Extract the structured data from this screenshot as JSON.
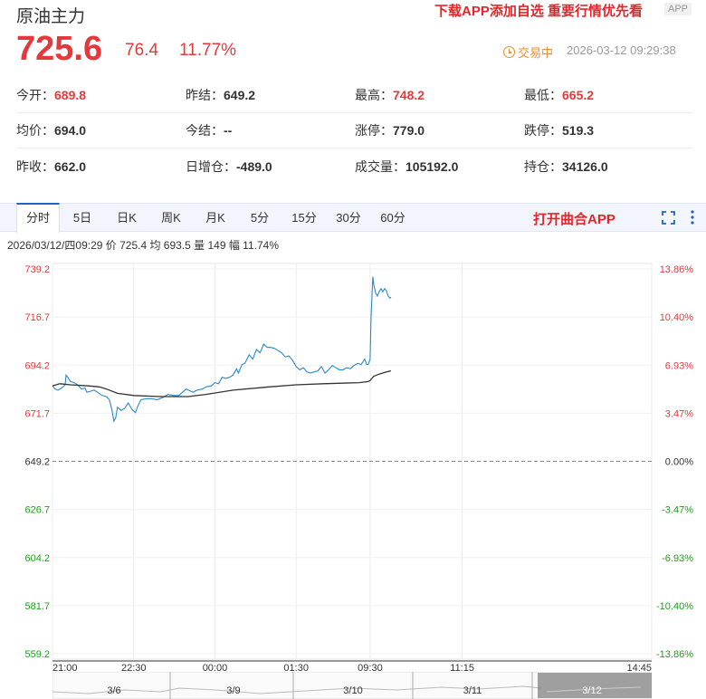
{
  "header": {
    "title": "原油主力",
    "promo": "下载APP添加自选 重要行情优先看",
    "app_badge": "APP",
    "price": "725.6",
    "change": "76.4",
    "change_pct": "11.77%",
    "status": "交易中",
    "timestamp": "2026-03-12 09:29:38"
  },
  "stats": [
    [
      {
        "label": "今开：",
        "value": "689.8",
        "color": "red"
      },
      {
        "label": "昨结：",
        "value": "649.2",
        "color": "black"
      },
      {
        "label": "最高：",
        "value": "748.2",
        "color": "red"
      },
      {
        "label": "最低：",
        "value": "665.2",
        "color": "red"
      }
    ],
    [
      {
        "label": "均价：",
        "value": "694.0",
        "color": "black"
      },
      {
        "label": "今结：",
        "value": "--",
        "color": "black"
      },
      {
        "label": "涨停：",
        "value": "779.0",
        "color": "black"
      },
      {
        "label": "跌停：",
        "value": "519.3",
        "color": "black"
      }
    ],
    [
      {
        "label": "昨收：",
        "value": "662.0",
        "color": "black"
      },
      {
        "label": "日增仓：",
        "value": "-489.0",
        "color": "black"
      },
      {
        "label": "成交量：",
        "value": "105192.0",
        "color": "black"
      },
      {
        "label": "持仓：",
        "value": "34126.0",
        "color": "black"
      }
    ]
  ],
  "tabs": [
    "分时",
    "5日",
    "日K",
    "周K",
    "月K",
    "5分",
    "15分",
    "30分",
    "60分"
  ],
  "active_tab": "分时",
  "open_app": "打开曲合APP",
  "info_line": "2026/03/12/四09:29  价 725.4  均 693.5  量 149  幅 11.74%",
  "colors": {
    "up": "#e4393c",
    "down": "#1aa01a",
    "price_line": "#2a88c8",
    "avg_line": "#333333",
    "accent": "#1e63c5"
  },
  "chart_data": {
    "type": "line",
    "ylim": [
      559.2,
      739.2
    ],
    "ref_price": 649.2,
    "y_ticks_left": [
      "739.2",
      "716.7",
      "694.2",
      "671.7",
      "649.2",
      "626.7",
      "604.2",
      "581.7",
      "559.2"
    ],
    "y_ticks_right": [
      "13.86%",
      "10.40%",
      "6.93%",
      "3.47%",
      "0.00%",
      "-3.47%",
      "-6.93%",
      "-10.40%",
      "-13.86%"
    ],
    "x_ticks": [
      "21:00",
      "22:30",
      "00:00",
      "01:30",
      "09:30",
      "11:15",
      "14:45"
    ],
    "x_tick_index": [
      0,
      90,
      180,
      270,
      352,
      454,
      664
    ],
    "x_total": 664,
    "series": [
      {
        "name": "价",
        "kind": "price",
        "points": [
          [
            0,
            684.5
          ],
          [
            3,
            683
          ],
          [
            6,
            682.5
          ],
          [
            10,
            683.5
          ],
          [
            14,
            685
          ],
          [
            15,
            689.5
          ],
          [
            17,
            688.5
          ],
          [
            20,
            686.5
          ],
          [
            24,
            686
          ],
          [
            28,
            685
          ],
          [
            32,
            683
          ],
          [
            36,
            683.5
          ],
          [
            38,
            681.5
          ],
          [
            42,
            682
          ],
          [
            46,
            682.5
          ],
          [
            50,
            681.5
          ],
          [
            55,
            680
          ],
          [
            60,
            679.5
          ],
          [
            63,
            678
          ],
          [
            66,
            673
          ],
          [
            68,
            668
          ],
          [
            70,
            669.5
          ],
          [
            72,
            674.5
          ],
          [
            76,
            673
          ],
          [
            80,
            674
          ],
          [
            84,
            676.5
          ],
          [
            88,
            673.5
          ],
          [
            92,
            672
          ],
          [
            94,
            674.5
          ],
          [
            98,
            678
          ],
          [
            104,
            678.5
          ],
          [
            110,
            678.5
          ],
          [
            116,
            678
          ],
          [
            122,
            679
          ],
          [
            128,
            680.5
          ],
          [
            134,
            680
          ],
          [
            140,
            680
          ],
          [
            148,
            683
          ],
          [
            156,
            681.5
          ],
          [
            160,
            682.5
          ],
          [
            166,
            683
          ],
          [
            170,
            684
          ],
          [
            176,
            684.5
          ],
          [
            180,
            686
          ],
          [
            184,
            685.5
          ],
          [
            188,
            688.5
          ],
          [
            192,
            688
          ],
          [
            196,
            688.5
          ],
          [
            200,
            689.5
          ],
          [
            204,
            692.5
          ],
          [
            206,
            690.5
          ],
          [
            210,
            694.5
          ],
          [
            213,
            695
          ],
          [
            218,
            699
          ],
          [
            222,
            697
          ],
          [
            226,
            701.5
          ],
          [
            230,
            700
          ],
          [
            234,
            704
          ],
          [
            238,
            702.5
          ],
          [
            242,
            702.5
          ],
          [
            246,
            702
          ],
          [
            250,
            701
          ],
          [
            254,
            700
          ],
          [
            258,
            698
          ],
          [
            262,
            698.5
          ],
          [
            266,
            696.5
          ],
          [
            270,
            693.5
          ],
          [
            274,
            692
          ],
          [
            278,
            693
          ],
          [
            282,
            691
          ],
          [
            286,
            690.5
          ],
          [
            290,
            691
          ],
          [
            294,
            691.5
          ],
          [
            298,
            693.5
          ],
          [
            302,
            690.5
          ],
          [
            306,
            692
          ],
          [
            310,
            694
          ],
          [
            314,
            693
          ],
          [
            318,
            692
          ],
          [
            322,
            692
          ],
          [
            326,
            693
          ],
          [
            330,
            692.5
          ],
          [
            334,
            694
          ],
          [
            338,
            695
          ],
          [
            342,
            694.5
          ],
          [
            346,
            697
          ],
          [
            348,
            694.5
          ],
          [
            350,
            694.5
          ],
          [
            352,
            697
          ],
          [
            353,
            716
          ],
          [
            354,
            726
          ],
          [
            355,
            735.5
          ],
          [
            356,
            732
          ],
          [
            358,
            728
          ],
          [
            360,
            726.5
          ],
          [
            362,
            728.5
          ],
          [
            364,
            730
          ],
          [
            366,
            728.5
          ],
          [
            368,
            730
          ],
          [
            370,
            729
          ],
          [
            372,
            726.5
          ],
          [
            374,
            725.5
          ],
          [
            375,
            726
          ]
        ]
      },
      {
        "name": "均",
        "kind": "avg",
        "points": [
          [
            0,
            684.5
          ],
          [
            8,
            685.5
          ],
          [
            20,
            685
          ],
          [
            40,
            684.5
          ],
          [
            52,
            684
          ],
          [
            60,
            683
          ],
          [
            72,
            681
          ],
          [
            90,
            680
          ],
          [
            120,
            679.5
          ],
          [
            150,
            679.5
          ],
          [
            170,
            680.5
          ],
          [
            200,
            682.5
          ],
          [
            240,
            684
          ],
          [
            270,
            685
          ],
          [
            300,
            685.5
          ],
          [
            340,
            686
          ],
          [
            350,
            686.5
          ],
          [
            352,
            687
          ],
          [
            356,
            689
          ],
          [
            362,
            690
          ],
          [
            370,
            691
          ],
          [
            375,
            691.5
          ]
        ]
      }
    ]
  },
  "navigator": {
    "labels": [
      "3/6",
      "3/9",
      "3/10",
      "3/11",
      "3/12"
    ]
  }
}
